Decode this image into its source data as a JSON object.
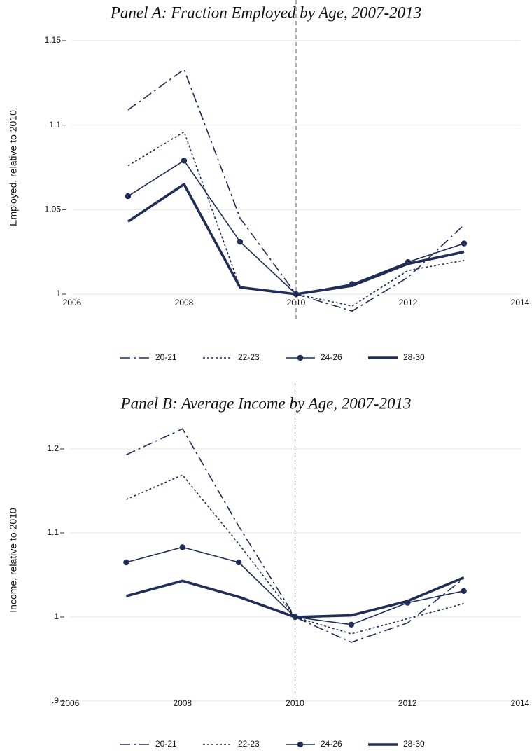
{
  "chart_data": [
    {
      "type": "line",
      "title": "Panel A: Fraction Employed by Age, 2007-2013",
      "y_label": "Employed, relative to 2010",
      "x": [
        2007,
        2008,
        2009,
        2010,
        2011,
        2012,
        2013
      ],
      "xlim": [
        2006,
        2014
      ],
      "xticks": [
        2006,
        2008,
        2010,
        2012,
        2014
      ],
      "ylim": [
        0.985,
        1.15
      ],
      "yticks": [
        1,
        1.05,
        1.1,
        1.15
      ],
      "grid": true,
      "vline": 2010,
      "series": [
        {
          "name": "20-21",
          "color": "#1f2d57",
          "dash": "dash-dot",
          "width": 1.6,
          "marker": false,
          "values": [
            1.109,
            1.133,
            1.045,
            1,
            0.99,
            1.01,
            1.041
          ]
        },
        {
          "name": "22-23",
          "color": "#1f2d57",
          "dash": "dotted",
          "width": 1.6,
          "marker": false,
          "values": [
            1.076,
            1.096,
            1.004,
            1,
            0.993,
            1.014,
            1.02
          ]
        },
        {
          "name": "24-26",
          "color": "#1f2d57",
          "dash": "solid",
          "width": 1.6,
          "marker": true,
          "values": [
            1.058,
            1.079,
            1.031,
            1,
            1.006,
            1.019,
            1.03
          ]
        },
        {
          "name": "28-30",
          "color": "#1f2d57",
          "dash": "solid",
          "width": 3.6,
          "marker": false,
          "values": [
            1.043,
            1.065,
            1.004,
            1,
            1.005,
            1.018,
            1.025
          ]
        }
      ]
    },
    {
      "type": "line",
      "title": "Panel B: Average Income by Age, 2007-2013",
      "y_label": "Income, relative to 2010",
      "x": [
        2007,
        2008,
        2009,
        2010,
        2011,
        2012,
        2013
      ],
      "xlim": [
        2006,
        2014
      ],
      "xticks": [
        2006,
        2008,
        2010,
        2012,
        2014
      ],
      "ylim": [
        0.9,
        1.23
      ],
      "yticks": [
        {
          "value": 0.9,
          "label": ".9"
        },
        1,
        1.1,
        1.2
      ],
      "grid": true,
      "vline": 2010,
      "series": [
        {
          "name": "20-21",
          "color": "#1f2d57",
          "dash": "dash-dot",
          "width": 1.6,
          "marker": false,
          "values": [
            1.193,
            1.224,
            1.108,
            1,
            0.97,
            0.993,
            1.046
          ]
        },
        {
          "name": "22-23",
          "color": "#1f2d57",
          "dash": "dotted",
          "width": 1.6,
          "marker": false,
          "values": [
            1.14,
            1.169,
            1.087,
            1,
            0.98,
            0.998,
            1.016
          ]
        },
        {
          "name": "24-26",
          "color": "#1f2d57",
          "dash": "solid",
          "width": 1.6,
          "marker": true,
          "values": [
            1.065,
            1.083,
            1.065,
            1,
            0.991,
            1.017,
            1.031
          ]
        },
        {
          "name": "28-30",
          "color": "#1f2d57",
          "dash": "solid",
          "width": 3.6,
          "marker": false,
          "values": [
            1.025,
            1.043,
            1.024,
            1,
            1.002,
            1.019,
            1.047
          ]
        }
      ]
    }
  ]
}
